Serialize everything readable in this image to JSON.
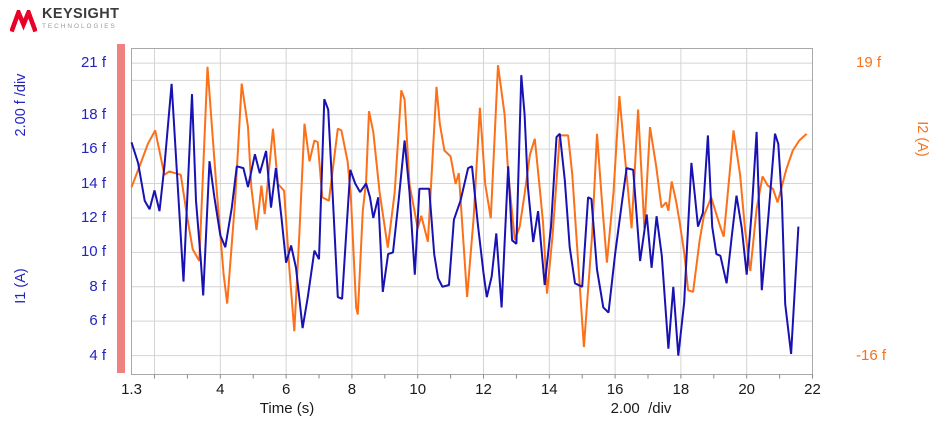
{
  "brand": {
    "name": "KEYSIGHT",
    "sub": "TECHNOLOGIES"
  },
  "colors": {
    "blue_curve": "#1812b2",
    "blue_text": "#2424c0",
    "orange": "#fb7018",
    "grid": "#d4d4d4",
    "border": "#a8a8a8",
    "minor_tick": "#888888",
    "highlight_bar": "#ef8181",
    "logo_red": "#e90029",
    "axis_text": "#1a1a1a"
  },
  "chart": {
    "x_axis": {
      "name": "Time (s)",
      "div_label": "2.00  /div",
      "ticks": [
        {
          "v": 1.3,
          "label": "1.3"
        },
        {
          "v": 4,
          "label": "4"
        },
        {
          "v": 6,
          "label": "6"
        },
        {
          "v": 8,
          "label": "8"
        },
        {
          "v": 10,
          "label": "10"
        },
        {
          "v": 12,
          "label": "12"
        },
        {
          "v": 14,
          "label": "14"
        },
        {
          "v": 16,
          "label": "16"
        },
        {
          "v": 18,
          "label": "18"
        },
        {
          "v": 20,
          "label": "20"
        },
        {
          "v": 22,
          "label": "22"
        }
      ],
      "gridlines": [
        2,
        4,
        6,
        8,
        10,
        12,
        14,
        16,
        18,
        20,
        22
      ],
      "minor_ticks": [
        2,
        3,
        4,
        5,
        6,
        7,
        8,
        9,
        10,
        11,
        12,
        13,
        14,
        15,
        16,
        17,
        18,
        19,
        20,
        21,
        22
      ]
    },
    "left_axis": {
      "name": "I1 (A)",
      "div_label": "2.00 f /div",
      "range": [
        2.9,
        21.85
      ],
      "gridlines": [
        21,
        20,
        18,
        16,
        14,
        12,
        10,
        8,
        6,
        4
      ],
      "ticks": [
        {
          "v": 21,
          "label": "21 f"
        },
        {
          "v": 18,
          "label": "18 f"
        },
        {
          "v": 16,
          "label": "16 f"
        },
        {
          "v": 14,
          "label": "14 f"
        },
        {
          "v": 12,
          "label": "12 f"
        },
        {
          "v": 10,
          "label": "10 f"
        },
        {
          "v": 8,
          "label": "8 f"
        },
        {
          "v": 6,
          "label": "6 f"
        },
        {
          "v": 4,
          "label": "4 f"
        }
      ]
    },
    "right_axis": {
      "name": "I2 (A)",
      "range": [
        -18.27,
        20.69
      ],
      "ticks": [
        {
          "v": 19,
          "label": "19 f"
        },
        {
          "v": -16,
          "label": "-16 f"
        }
      ]
    }
  },
  "chart_data": {
    "type": "line",
    "title": "",
    "xlabel": "Time (s)",
    "x_range": [
      1.3,
      22
    ],
    "grid": true,
    "series": [
      {
        "name": "I1 (A)",
        "axis": "left",
        "unit": "f (A)",
        "color_key": "blue_curve",
        "points": [
          [
            1.3,
            16.4
          ],
          [
            1.5,
            15.2
          ],
          [
            1.7,
            13.0
          ],
          [
            1.85,
            12.5
          ],
          [
            2.0,
            13.6
          ],
          [
            2.15,
            12.4
          ],
          [
            2.3,
            15.0
          ],
          [
            2.52,
            19.8
          ],
          [
            2.7,
            14.0
          ],
          [
            2.88,
            8.3
          ],
          [
            3.14,
            19.2
          ],
          [
            3.26,
            13.0
          ],
          [
            3.4,
            9.7
          ],
          [
            3.48,
            7.5
          ],
          [
            3.67,
            15.3
          ],
          [
            3.82,
            13.2
          ],
          [
            4.0,
            11.0
          ],
          [
            4.15,
            10.3
          ],
          [
            4.35,
            12.6
          ],
          [
            4.5,
            15.0
          ],
          [
            4.7,
            14.9
          ],
          [
            4.84,
            13.8
          ],
          [
            5.05,
            15.7
          ],
          [
            5.2,
            14.6
          ],
          [
            5.39,
            15.9
          ],
          [
            5.54,
            12.6
          ],
          [
            5.69,
            14.9
          ],
          [
            5.86,
            12.0
          ],
          [
            6.0,
            9.4
          ],
          [
            6.15,
            10.4
          ],
          [
            6.3,
            9.1
          ],
          [
            6.5,
            5.6
          ],
          [
            6.66,
            7.4
          ],
          [
            6.86,
            10.1
          ],
          [
            7.0,
            9.6
          ],
          [
            7.16,
            18.9
          ],
          [
            7.28,
            18.3
          ],
          [
            7.42,
            13.2
          ],
          [
            7.57,
            7.4
          ],
          [
            7.7,
            7.3
          ],
          [
            7.82,
            10.9
          ],
          [
            7.95,
            14.8
          ],
          [
            8.1,
            14.0
          ],
          [
            8.25,
            13.5
          ],
          [
            8.43,
            14.0
          ],
          [
            8.55,
            13.2
          ],
          [
            8.65,
            12.0
          ],
          [
            8.8,
            13.2
          ],
          [
            8.94,
            7.7
          ],
          [
            9.1,
            9.9
          ],
          [
            9.25,
            10.0
          ],
          [
            9.42,
            13.0
          ],
          [
            9.6,
            16.5
          ],
          [
            9.75,
            13.5
          ],
          [
            9.91,
            8.7
          ],
          [
            10.05,
            13.7
          ],
          [
            10.35,
            13.7
          ],
          [
            10.5,
            9.9
          ],
          [
            10.62,
            8.5
          ],
          [
            10.75,
            8.0
          ],
          [
            10.95,
            8.1
          ],
          [
            11.1,
            11.9
          ],
          [
            11.3,
            13.0
          ],
          [
            11.53,
            14.9
          ],
          [
            11.65,
            15.0
          ],
          [
            11.83,
            11.6
          ],
          [
            12.0,
            8.8
          ],
          [
            12.1,
            7.4
          ],
          [
            12.25,
            8.6
          ],
          [
            12.39,
            11.1
          ],
          [
            12.55,
            6.8
          ],
          [
            12.75,
            15.0
          ],
          [
            12.87,
            10.7
          ],
          [
            13.0,
            10.5
          ],
          [
            13.15,
            20.3
          ],
          [
            13.25,
            18.0
          ],
          [
            13.35,
            13.8
          ],
          [
            13.51,
            10.6
          ],
          [
            13.66,
            12.4
          ],
          [
            13.86,
            8.1
          ],
          [
            14.05,
            11.5
          ],
          [
            14.22,
            16.7
          ],
          [
            14.32,
            16.9
          ],
          [
            14.47,
            14.2
          ],
          [
            14.62,
            10.3
          ],
          [
            14.78,
            8.2
          ],
          [
            15.0,
            8.0
          ],
          [
            15.18,
            13.2
          ],
          [
            15.28,
            13.1
          ],
          [
            15.45,
            9.0
          ],
          [
            15.64,
            6.8
          ],
          [
            15.8,
            6.5
          ],
          [
            16.0,
            9.9
          ],
          [
            16.2,
            12.8
          ],
          [
            16.35,
            14.9
          ],
          [
            16.55,
            14.8
          ],
          [
            16.76,
            9.5
          ],
          [
            16.96,
            12.2
          ],
          [
            17.11,
            9.1
          ],
          [
            17.26,
            12.1
          ],
          [
            17.42,
            9.8
          ],
          [
            17.62,
            4.4
          ],
          [
            17.77,
            8.0
          ],
          [
            17.92,
            4.0
          ],
          [
            18.1,
            7.1
          ],
          [
            18.32,
            15.2
          ],
          [
            18.42,
            13.4
          ],
          [
            18.52,
            11.5
          ],
          [
            18.67,
            12.3
          ],
          [
            18.82,
            16.8
          ],
          [
            18.95,
            11.5
          ],
          [
            19.08,
            9.9
          ],
          [
            19.2,
            9.8
          ],
          [
            19.39,
            8.2
          ],
          [
            19.55,
            11.0
          ],
          [
            19.69,
            13.3
          ],
          [
            19.85,
            11.4
          ],
          [
            20.0,
            8.7
          ],
          [
            20.15,
            12.3
          ],
          [
            20.3,
            17.0
          ],
          [
            20.46,
            7.8
          ],
          [
            20.66,
            12.1
          ],
          [
            20.86,
            16.9
          ],
          [
            20.96,
            16.3
          ],
          [
            21.07,
            13.0
          ],
          [
            21.17,
            7.0
          ],
          [
            21.35,
            4.1
          ],
          [
            21.57,
            11.5
          ]
        ]
      },
      {
        "name": "I2 (A)",
        "axis": "right",
        "unit": "f (A)",
        "color_key": "orange",
        "points": [
          [
            1.3,
            4.1
          ],
          [
            1.6,
            7.2
          ],
          [
            1.8,
            9.3
          ],
          [
            2.02,
            10.9
          ],
          [
            2.3,
            5.6
          ],
          [
            2.45,
            6.0
          ],
          [
            2.8,
            5.6
          ],
          [
            3.0,
            0.4
          ],
          [
            3.16,
            -3.3
          ],
          [
            3.36,
            -4.7
          ],
          [
            3.61,
            18.5
          ],
          [
            3.87,
            4.8
          ],
          [
            4.1,
            -6.3
          ],
          [
            4.21,
            -9.8
          ],
          [
            4.45,
            2.5
          ],
          [
            4.65,
            16.5
          ],
          [
            4.84,
            11.3
          ],
          [
            4.94,
            4.1
          ],
          [
            5.1,
            -1.0
          ],
          [
            5.25,
            4.3
          ],
          [
            5.35,
            0.9
          ],
          [
            5.6,
            11.1
          ],
          [
            5.75,
            4.5
          ],
          [
            5.94,
            3.7
          ],
          [
            6.1,
            -5.7
          ],
          [
            6.25,
            -13.1
          ],
          [
            6.4,
            -1.6
          ],
          [
            6.56,
            11.7
          ],
          [
            6.71,
            7.2
          ],
          [
            6.86,
            9.7
          ],
          [
            6.96,
            9.5
          ],
          [
            7.1,
            2.9
          ],
          [
            7.3,
            2.5
          ],
          [
            7.57,
            11.1
          ],
          [
            7.68,
            10.9
          ],
          [
            7.87,
            7.2
          ],
          [
            7.97,
            2.9
          ],
          [
            8.13,
            -10.3
          ],
          [
            8.18,
            -11.1
          ],
          [
            8.33,
            1.3
          ],
          [
            8.43,
            4.8
          ],
          [
            8.52,
            13.2
          ],
          [
            8.65,
            10.7
          ],
          [
            8.84,
            3.5
          ],
          [
            9.09,
            -3.1
          ],
          [
            9.3,
            3.5
          ],
          [
            9.5,
            15.7
          ],
          [
            9.6,
            14.6
          ],
          [
            9.75,
            4.5
          ],
          [
            10.0,
            -0.8
          ],
          [
            10.11,
            0.7
          ],
          [
            10.31,
            -2.4
          ],
          [
            10.57,
            16.1
          ],
          [
            10.67,
            11.7
          ],
          [
            10.81,
            8.5
          ],
          [
            11.0,
            7.8
          ],
          [
            11.15,
            4.5
          ],
          [
            11.25,
            5.8
          ],
          [
            11.5,
            -9.0
          ],
          [
            11.7,
            0.4
          ],
          [
            11.89,
            13.6
          ],
          [
            12.05,
            4.5
          ],
          [
            12.22,
            0.4
          ],
          [
            12.44,
            18.7
          ],
          [
            12.64,
            12.8
          ],
          [
            12.75,
            5.8
          ],
          [
            12.95,
            -2.2
          ],
          [
            13.1,
            -0.6
          ],
          [
            13.25,
            3.3
          ],
          [
            13.41,
            8.0
          ],
          [
            13.56,
            9.9
          ],
          [
            13.71,
            3.9
          ],
          [
            13.81,
            -0.2
          ],
          [
            13.93,
            -8.6
          ],
          [
            14.1,
            -1.6
          ],
          [
            14.32,
            10.3
          ],
          [
            14.57,
            10.3
          ],
          [
            14.7,
            5.6
          ],
          [
            14.88,
            -5.1
          ],
          [
            15.05,
            -15.0
          ],
          [
            15.3,
            -1.6
          ],
          [
            15.45,
            10.5
          ],
          [
            15.6,
            2.5
          ],
          [
            15.75,
            -4.9
          ],
          [
            15.95,
            3.5
          ],
          [
            16.13,
            15.0
          ],
          [
            16.35,
            5.6
          ],
          [
            16.5,
            -0.8
          ],
          [
            16.7,
            13.4
          ],
          [
            16.89,
            -0.8
          ],
          [
            17.06,
            11.3
          ],
          [
            17.25,
            6.6
          ],
          [
            17.41,
            1.7
          ],
          [
            17.55,
            2.3
          ],
          [
            17.62,
            1.3
          ],
          [
            17.72,
            4.8
          ],
          [
            17.85,
            2.5
          ],
          [
            17.95,
            0.2
          ],
          [
            18.1,
            -3.7
          ],
          [
            18.22,
            -8.2
          ],
          [
            18.37,
            -8.4
          ],
          [
            18.57,
            -2.2
          ],
          [
            18.7,
            0.7
          ],
          [
            18.92,
            2.9
          ],
          [
            19.18,
            -0.4
          ],
          [
            19.3,
            -1.8
          ],
          [
            19.5,
            6.6
          ],
          [
            19.6,
            10.9
          ],
          [
            19.8,
            5.6
          ],
          [
            19.95,
            -1.0
          ],
          [
            20.11,
            -5.9
          ],
          [
            20.3,
            1.5
          ],
          [
            20.48,
            5.4
          ],
          [
            20.64,
            4.3
          ],
          [
            20.8,
            3.9
          ],
          [
            20.94,
            2.3
          ],
          [
            21.2,
            6.2
          ],
          [
            21.4,
            8.5
          ],
          [
            21.6,
            9.7
          ],
          [
            21.82,
            10.5
          ]
        ]
      }
    ]
  }
}
